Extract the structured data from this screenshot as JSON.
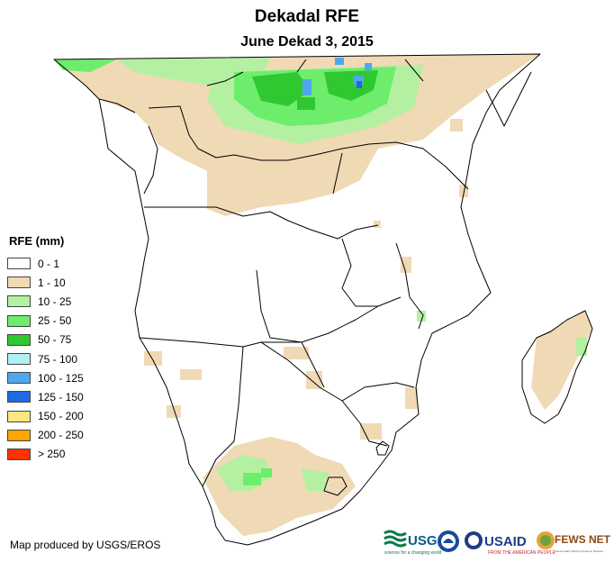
{
  "header": {
    "title": "Dekadal RFE",
    "subtitle": "June Dekad 3, 2015"
  },
  "legend": {
    "title": "RFE (mm)",
    "items": [
      {
        "label": "0 - 1",
        "color": "#ffffff"
      },
      {
        "label": "1 - 10",
        "color": "#f0d9b5"
      },
      {
        "label": "10 - 25",
        "color": "#b4f0a2"
      },
      {
        "label": "25 - 50",
        "color": "#6eed6c"
      },
      {
        "label": "50 - 75",
        "color": "#30c830"
      },
      {
        "label": "75 - 100",
        "color": "#b0f0f5"
      },
      {
        "label": "100 - 125",
        "color": "#4fa8ee"
      },
      {
        "label": "125 - 150",
        "color": "#1e6be0"
      },
      {
        "label": "150 - 200",
        "color": "#ffe680"
      },
      {
        "label": "200 - 250",
        "color": "#ffa500"
      },
      {
        "label": "> 250",
        "color": "#ff3300"
      }
    ]
  },
  "footer": {
    "credit": "Map produced by USGS/EROS",
    "logos": {
      "usgs": "USGS",
      "usgs_tagline": "science for a changing world",
      "usaid": "USAID",
      "usaid_tagline": "FROM THE AMERICAN PEOPLE",
      "fewsnet": "FEWS NET",
      "fewsnet_tagline": "Famine Early Warning Systems Network"
    }
  }
}
